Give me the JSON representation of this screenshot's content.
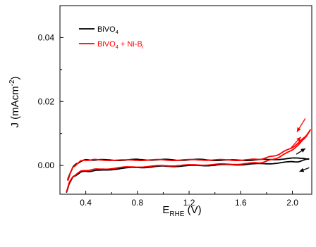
{
  "chart_data": {
    "type": "line",
    "title": "",
    "xlabel": {
      "main": "E",
      "sub": "RHE",
      "rest": " (V)"
    },
    "ylabel": {
      "main": "J (mAcm",
      "sup": "-2",
      "rest": ")"
    },
    "xlim": [
      0.2,
      2.15
    ],
    "ylim": [
      -0.009,
      0.05
    ],
    "xticks": [
      0.4,
      0.8,
      1.2,
      1.6,
      2.0
    ],
    "xtick_labels": [
      "0.4",
      "0.8",
      "1.2",
      "1.6",
      "2.0"
    ],
    "yticks": [
      0.0,
      0.02,
      0.04
    ],
    "ytick_labels": [
      "0.00",
      "0.02",
      "0.04"
    ],
    "grid": false,
    "legend_position": "top-left",
    "series": [
      {
        "name": "BiVO4",
        "legend": {
          "main": "BiVO",
          "sub": "4",
          "rest": ""
        },
        "color": "#000000",
        "forward": {
          "x": [
            0.25,
            0.27,
            0.3,
            0.33,
            0.36,
            0.4,
            0.45,
            0.5,
            0.6,
            0.7,
            0.8,
            0.9,
            1.0,
            1.1,
            1.2,
            1.3,
            1.4,
            1.5,
            1.6,
            1.7,
            1.8,
            1.9,
            2.0,
            2.05,
            2.1,
            2.13
          ],
          "y": [
            -0.0085,
            -0.0058,
            -0.0038,
            -0.0028,
            -0.0022,
            -0.0018,
            -0.0017,
            -0.0016,
            -0.0012,
            -0.0009,
            -0.0006,
            -0.0005,
            -0.0003,
            -0.0002,
            -0.0001,
            0.0,
            0.0001,
            0.0002,
            0.0003,
            0.0004,
            0.0006,
            0.0008,
            0.0011,
            0.0013,
            0.0017,
            0.0021
          ]
        },
        "reverse": {
          "x": [
            2.13,
            2.1,
            2.0,
            1.9,
            1.8,
            1.7,
            1.6,
            1.5,
            1.4,
            1.3,
            1.2,
            1.1,
            1.0,
            0.9,
            0.8,
            0.7,
            0.6,
            0.5,
            0.45,
            0.4,
            0.36,
            0.33,
            0.3,
            0.28,
            0.26
          ],
          "y": [
            0.0021,
            0.0022,
            0.0022,
            0.002,
            0.0018,
            0.0017,
            0.0017,
            0.0016,
            0.0017,
            0.0018,
            0.0018,
            0.0017,
            0.0018,
            0.0018,
            0.0018,
            0.0017,
            0.0017,
            0.0017,
            0.0018,
            0.0017,
            0.0013,
            0.0006,
            -0.0006,
            -0.0022,
            -0.0045
          ]
        }
      },
      {
        "name": "BiVO4 + Ni-Bi",
        "legend": {
          "main": "BiVO",
          "sub": "4",
          "rest": " + Ni-B",
          "sub2": "i"
        },
        "color": "#ff0000",
        "forward": {
          "x": [
            0.25,
            0.27,
            0.3,
            0.33,
            0.36,
            0.4,
            0.45,
            0.5,
            0.6,
            0.7,
            0.8,
            0.9,
            1.0,
            1.1,
            1.2,
            1.3,
            1.4,
            1.5,
            1.6,
            1.7,
            1.75,
            1.8,
            1.85,
            1.9,
            1.95,
            2.0,
            2.05,
            2.1,
            2.14
          ],
          "y": [
            -0.0082,
            -0.0055,
            -0.0036,
            -0.0025,
            -0.0019,
            -0.0015,
            -0.0013,
            -0.0012,
            -0.0009,
            -0.0006,
            -0.0004,
            -0.0003,
            -0.0001,
            0.0,
            0.0001,
            0.0002,
            0.0003,
            0.0004,
            0.0005,
            0.0007,
            0.0009,
            0.0013,
            0.0019,
            0.0027,
            0.0037,
            0.005,
            0.0065,
            0.0087,
            0.0113
          ]
        },
        "reverse": {
          "x": [
            2.14,
            2.1,
            2.05,
            2.0,
            1.95,
            1.9,
            1.85,
            1.8,
            1.75,
            1.7,
            1.6,
            1.5,
            1.4,
            1.3,
            1.2,
            1.1,
            1.0,
            0.9,
            0.8,
            0.7,
            0.6,
            0.5,
            0.45,
            0.4,
            0.36,
            0.33,
            0.3,
            0.28,
            0.26
          ],
          "y": [
            0.0113,
            0.009,
            0.0071,
            0.0057,
            0.0046,
            0.0036,
            0.0029,
            0.0024,
            0.002,
            0.0018,
            0.0017,
            0.0017,
            0.0017,
            0.0018,
            0.0017,
            0.0017,
            0.0017,
            0.0017,
            0.0017,
            0.0016,
            0.0017,
            0.0017,
            0.0018,
            0.0017,
            0.0013,
            0.0005,
            -0.0007,
            -0.0024,
            -0.0048
          ]
        }
      }
    ]
  }
}
